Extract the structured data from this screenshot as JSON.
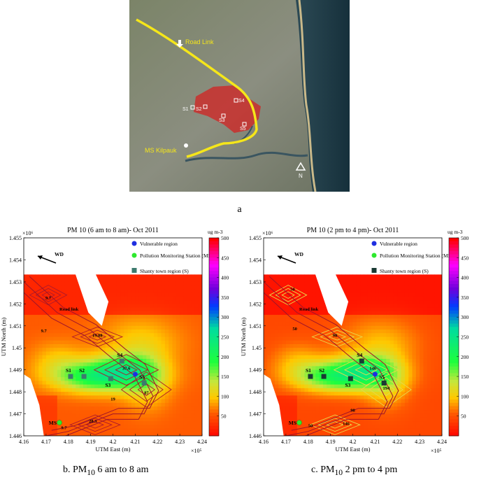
{
  "map": {
    "labels": [
      "Road Link",
      "MS Kilpauk",
      "S1",
      "S2",
      "S3",
      "S4",
      "S5",
      "N"
    ],
    "colors": {
      "road": "#f5e61a",
      "region": "#d61f1f",
      "sea": "#1d3440",
      "land": "#6d7462"
    },
    "figure_label": "a"
  },
  "chart_data": [
    {
      "type": "heatmap",
      "title": "PM 10 (6 am to 8 am)- Oct 2011",
      "xlabel": "UTM East (m)",
      "ylabel": "UTM North (m)",
      "x_exponent": "×10⁵",
      "y_exponent": "×10⁶",
      "xlim": [
        4.16,
        4.24
      ],
      "ylim": [
        1.446,
        1.455
      ],
      "x_ticks": [
        "4.16",
        "4.17",
        "4.18",
        "4.19",
        "4.2",
        "4.21",
        "4.22",
        "4.23",
        "4.24"
      ],
      "y_ticks": [
        "1.446",
        "1.447",
        "1.448",
        "1.449",
        "1.45",
        "1.451",
        "1.452",
        "1.453",
        "1.454",
        "1.455"
      ],
      "colorbar": {
        "label": "ug m-3",
        "ticks": [
          50,
          100,
          150,
          200,
          250,
          300,
          350,
          400,
          450,
          500
        ],
        "range": [
          0,
          500
        ]
      },
      "legend": [
        "Vulnerable region",
        "Pollution Monitoring Station (MS)",
        "Shanty town region (S)"
      ],
      "wind_label": "WD",
      "road_label": "Road link",
      "stations": [
        {
          "name": "S1",
          "x": 4.181,
          "y": 1.4487
        },
        {
          "name": "S2",
          "x": 4.187,
          "y": 1.4487
        },
        {
          "name": "S3",
          "x": 4.199,
          "y": 1.4486
        },
        {
          "name": "S4",
          "x": 4.204,
          "y": 1.4494
        },
        {
          "name": "S5",
          "x": 4.214,
          "y": 1.4484
        },
        {
          "name": "MS",
          "x": 4.176,
          "y": 1.4466
        }
      ],
      "vulnerable_point": {
        "x": 4.21,
        "y": 1.4488
      },
      "contour_labels": [
        {
          "text": "9.7",
          "x": 4.171,
          "y": 1.4522
        },
        {
          "text": "9.7",
          "x": 4.169,
          "y": 1.4507
        },
        {
          "text": "19.08",
          "x": 4.193,
          "y": 1.4505
        },
        {
          "text": "37.6",
          "x": 4.206,
          "y": 1.449
        },
        {
          "text": "19",
          "x": 4.2,
          "y": 1.4476
        },
        {
          "text": "87",
          "x": 4.215,
          "y": 1.4479
        },
        {
          "text": "28.3",
          "x": 4.191,
          "y": 1.4466
        },
        {
          "text": "9.7",
          "x": 4.178,
          "y": 1.4463
        }
      ]
    },
    {
      "type": "heatmap",
      "title": "PM 10 (2 pm to 4 pm)- Oct 2011",
      "xlabel": "UTM East (m)",
      "ylabel": "UTM North (m)",
      "x_exponent": "×10⁵",
      "y_exponent": "×10⁶",
      "xlim": [
        4.16,
        4.24
      ],
      "ylim": [
        1.446,
        1.455
      ],
      "x_ticks": [
        "4.16",
        "4.17",
        "4.18",
        "4.19",
        "4.2",
        "4.21",
        "4.22",
        "4.23",
        "4.24"
      ],
      "y_ticks": [
        "1.446",
        "1.447",
        "1.448",
        "1.449",
        "1.45",
        "1.451",
        "1.452",
        "1.453",
        "1.454",
        "1.455"
      ],
      "colorbar": {
        "label": "ug m-3",
        "ticks": [
          50,
          100,
          150,
          200,
          250,
          300,
          350,
          400,
          450,
          500
        ],
        "range": [
          0,
          500
        ]
      },
      "legend": [
        "Vulnerable region",
        "Pollution Monitoring Station (MS)",
        "Shanty town region (S)"
      ],
      "wind_label": "WD",
      "road_label": "Road link",
      "stations": [
        {
          "name": "S1",
          "x": 4.181,
          "y": 1.4487
        },
        {
          "name": "S2",
          "x": 4.187,
          "y": 1.4487
        },
        {
          "name": "S3",
          "x": 4.199,
          "y": 1.4486
        },
        {
          "name": "S4",
          "x": 4.204,
          "y": 1.4494
        },
        {
          "name": "S5",
          "x": 4.214,
          "y": 1.4484
        },
        {
          "name": "MS",
          "x": 4.176,
          "y": 1.4466
        }
      ],
      "vulnerable_point": {
        "x": 4.21,
        "y": 1.4488
      },
      "contour_labels": [
        {
          "text": "50",
          "x": 4.173,
          "y": 1.4526
        },
        {
          "text": "50",
          "x": 4.174,
          "y": 1.4508
        },
        {
          "text": "98",
          "x": 4.192,
          "y": 1.4505
        },
        {
          "text": "146",
          "x": 4.209,
          "y": 1.449
        },
        {
          "text": "194",
          "x": 4.215,
          "y": 1.4481
        },
        {
          "text": "98",
          "x": 4.2,
          "y": 1.4471
        },
        {
          "text": "146",
          "x": 4.197,
          "y": 1.4465
        },
        {
          "text": "50",
          "x": 4.181,
          "y": 1.4464
        }
      ]
    }
  ],
  "captions": {
    "b": {
      "prefix": "b. PM",
      "sub": "10",
      "suffix": " 6 am to 8 am"
    },
    "c": {
      "prefix": "c. PM",
      "sub": "10",
      "suffix": " 2 pm to 4 pm"
    }
  }
}
